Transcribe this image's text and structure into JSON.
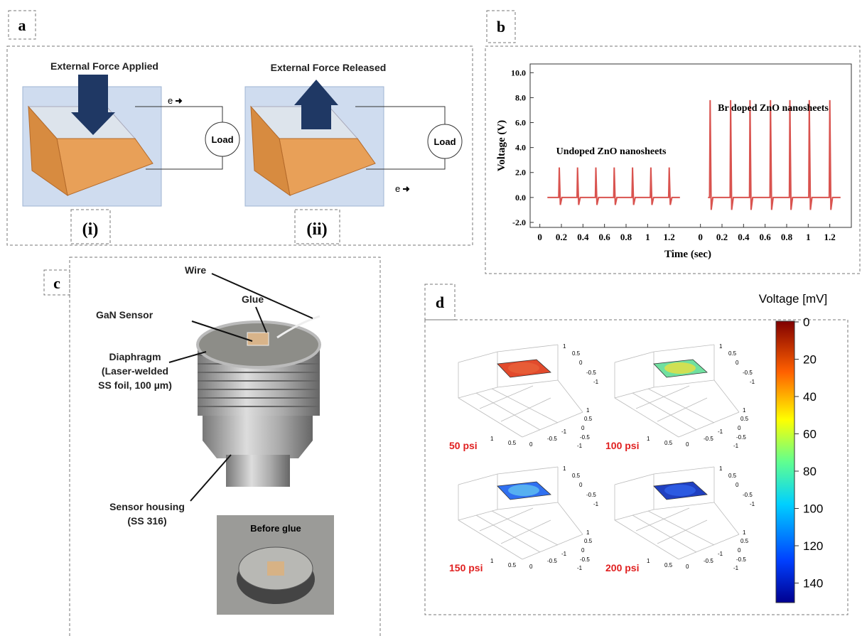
{
  "panels": {
    "a": {
      "label": "a",
      "force_applied": "External Force Applied",
      "force_released": "External Force Released",
      "electron": "e",
      "load": "Load",
      "sub_i": "(i)",
      "sub_ii": "(ii)"
    },
    "b": {
      "label": "b"
    },
    "c": {
      "label": "c",
      "wire": "Wire",
      "gan": "GaN Sensor",
      "glue": "Glue",
      "diaphragm": [
        "Diaphragm",
        "(Laser-welded",
        "SS foil, 100 µm)"
      ],
      "housing": [
        "Sensor housing",
        "(SS 316)"
      ],
      "before": "Before glue"
    },
    "d": {
      "label": "d",
      "colorbar_title": "Voltage [mV]",
      "colorbar_ticks": [
        "0",
        "20",
        "40",
        "60",
        "80",
        "100",
        "120",
        "140"
      ],
      "plots": [
        "50 psi",
        "100 psi",
        "150 psi",
        "200 psi"
      ],
      "axis_ticks": [
        "1",
        "0.5",
        "0",
        "-0.5",
        "-1"
      ]
    }
  },
  "chart_data": {
    "type": "line",
    "xlabel": "Time (sec)",
    "ylabel": "Voltage (V)",
    "xlim": [
      -0.09,
      1.4
    ],
    "xticks": [
      0,
      0.2,
      0.4,
      0.6,
      0.8,
      1,
      1.2
    ],
    "ylim": [
      -2.4,
      10.7
    ],
    "yticks": [
      {
        "value": -2,
        "label": "-2.0"
      },
      {
        "value": 0,
        "label": "0.0"
      },
      {
        "value": 2,
        "label": "2.0"
      },
      {
        "value": 4,
        "label": "4.0"
      },
      {
        "value": 6,
        "label": "6.0"
      },
      {
        "value": 8,
        "label": "8.0"
      },
      {
        "value": 10,
        "label": "10.0"
      }
    ],
    "series": [
      {
        "name": "Undoped ZnO nanosheets",
        "color": "#d9534f",
        "x": [
          0.07,
          0.175,
          0.18,
          0.19,
          0.205,
          0.345,
          0.35,
          0.36,
          0.375,
          0.515,
          0.52,
          0.53,
          0.545,
          0.685,
          0.69,
          0.7,
          0.715,
          0.855,
          0.86,
          0.87,
          0.885,
          1.025,
          1.03,
          1.04,
          1.055,
          1.195,
          1.2,
          1.21,
          1.225,
          1.3
        ],
        "values": [
          0,
          0,
          2.4,
          -0.6,
          0,
          0,
          2.4,
          -0.6,
          0,
          0,
          2.4,
          -0.6,
          0,
          0,
          2.4,
          -0.6,
          0,
          0,
          2.4,
          -0.6,
          0,
          0,
          2.4,
          -0.6,
          0,
          0,
          2.4,
          -0.6,
          0,
          0
        ]
      },
      {
        "name": "Br doped ZnO nanosheets",
        "color": "#d9534f",
        "x": [
          0.07,
          0.085,
          0.09,
          0.1,
          0.115,
          0.275,
          0.28,
          0.29,
          0.305,
          0.455,
          0.46,
          0.47,
          0.485,
          0.645,
          0.65,
          0.66,
          0.675,
          0.825,
          0.83,
          0.84,
          0.855,
          1.005,
          1.01,
          1.02,
          1.035,
          1.195,
          1.2,
          1.21,
          1.225,
          1.3
        ],
        "values": [
          0,
          0,
          7.8,
          -1.0,
          0,
          0,
          7.8,
          -1.0,
          0,
          0,
          7.8,
          -1.0,
          0,
          0,
          7.8,
          -1.0,
          0,
          0,
          7.8,
          -1.0,
          0,
          0,
          7.8,
          -1.0,
          0,
          0,
          7.8,
          -1.0,
          0,
          0
        ]
      }
    ]
  }
}
